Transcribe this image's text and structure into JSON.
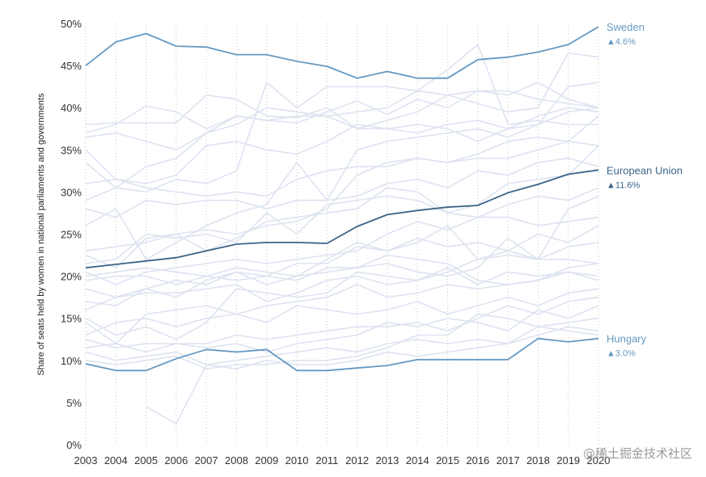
{
  "chart_data": {
    "type": "line",
    "title": "",
    "xlabel": "",
    "ylabel": "Share of seats held by women in national parliaments and governments",
    "x": [
      2003,
      2004,
      2005,
      2006,
      2007,
      2008,
      2009,
      2010,
      2011,
      2012,
      2013,
      2014,
      2015,
      2016,
      2017,
      2018,
      2019,
      2020
    ],
    "ylim": [
      0,
      50
    ],
    "y_ticks": [
      "0%",
      "5%",
      "10%",
      "15%",
      "20%",
      "25%",
      "30%",
      "35%",
      "40%",
      "45%",
      "50%"
    ],
    "grid": "dotted vertical lines at each year",
    "legend": "direct labels at the right end of highlighted series",
    "highlighted_series": [
      {
        "name": "Sweden",
        "change": "▲4.6%",
        "color": "#6699c2",
        "values": [
          45.0,
          47.8,
          48.8,
          47.3,
          47.2,
          46.3,
          46.3,
          45.5,
          44.9,
          43.5,
          44.3,
          43.5,
          43.5,
          45.7,
          46.0,
          46.6,
          47.5,
          49.6
        ]
      },
      {
        "name": "European Union",
        "change": "▲11.6%",
        "color": "#3c6488",
        "values": [
          21.0,
          21.4,
          21.8,
          22.2,
          23.0,
          23.8,
          24.0,
          24.0,
          23.9,
          25.9,
          27.3,
          27.8,
          28.2,
          28.4,
          29.9,
          30.9,
          32.1,
          32.6
        ]
      },
      {
        "name": "Hungary",
        "change": "▲3.0%",
        "color": "#6699c2",
        "values": [
          9.6,
          8.8,
          8.8,
          10.2,
          11.3,
          11.0,
          11.3,
          8.8,
          8.8,
          9.1,
          9.4,
          10.1,
          10.1,
          10.1,
          10.1,
          12.6,
          12.2,
          12.6
        ]
      }
    ],
    "background_series_color": "#dde3f0",
    "background_series": [
      {
        "values": [
          37.0,
          38.0,
          40.2,
          39.5,
          37.5,
          39.0,
          38.5,
          38.2,
          39.5,
          40.8,
          39.2,
          41.0,
          40.0,
          42.0,
          41.5,
          43.0,
          41.0,
          40.0
        ]
      },
      {
        "values": [
          36.5,
          37.0,
          36.0,
          35.0,
          37.0,
          38.0,
          40.0,
          39.5,
          39.0,
          37.5,
          38.5,
          39.5,
          41.5,
          40.5,
          39.5,
          40.0,
          46.5,
          46.0
        ]
      },
      {
        "values": [
          38.0,
          38.2,
          38.2,
          38.2,
          41.5,
          41.0,
          39.0,
          38.8,
          40.0,
          37.5,
          37.5,
          37.0,
          38.0,
          38.5,
          37.5,
          38.0,
          42.5,
          43.0
        ]
      },
      {
        "values": [
          35.0,
          31.5,
          31.0,
          32.0,
          35.5,
          36.0,
          35.0,
          34.5,
          36.0,
          38.0,
          37.5,
          38.0,
          37.5,
          36.0,
          37.5,
          39.0,
          40.0,
          39.5
        ]
      },
      {
        "values": [
          33.5,
          30.5,
          33.0,
          34.0,
          37.0,
          39.0,
          38.5,
          39.0,
          39.0,
          39.5,
          40.0,
          42.0,
          44.5,
          47.5,
          38.0,
          38.5,
          38.0,
          38.0
        ]
      },
      {
        "values": [
          29.0,
          30.5,
          30.0,
          31.5,
          31.0,
          32.5,
          43.0,
          40.0,
          42.5,
          42.5,
          42.5,
          42.0,
          41.5,
          42.0,
          42.0,
          41.0,
          40.5,
          40.0
        ]
      },
      {
        "values": [
          31.0,
          31.5,
          30.5,
          30.0,
          29.5,
          30.0,
          29.5,
          31.5,
          32.5,
          33.0,
          33.0,
          34.0,
          33.5,
          34.5,
          36.0,
          36.5,
          36.0,
          35.5
        ]
      },
      {
        "values": [
          28.0,
          27.0,
          29.0,
          28.5,
          29.0,
          29.0,
          28.0,
          29.0,
          29.0,
          35.0,
          36.0,
          36.5,
          37.0,
          37.5,
          36.5,
          38.0,
          39.5,
          40.0
        ]
      },
      {
        "values": [
          26.0,
          28.0,
          22.0,
          24.0,
          26.0,
          27.5,
          28.5,
          33.5,
          29.0,
          29.5,
          31.0,
          31.5,
          30.5,
          32.5,
          32.0,
          33.5,
          34.0,
          33.0
        ]
      },
      {
        "values": [
          23.0,
          23.5,
          24.0,
          25.0,
          25.5,
          25.0,
          26.0,
          26.5,
          28.0,
          32.0,
          33.5,
          34.0,
          33.5,
          34.0,
          34.0,
          35.0,
          36.0,
          39.0
        ]
      },
      {
        "values": [
          22.5,
          21.0,
          24.5,
          25.0,
          23.0,
          24.5,
          26.5,
          27.0,
          27.5,
          28.0,
          30.5,
          30.0,
          27.5,
          27.0,
          27.0,
          26.0,
          26.5,
          27.0
        ]
      },
      {
        "values": [
          21.5,
          22.0,
          25.0,
          24.5,
          25.0,
          24.0,
          27.5,
          25.0,
          28.5,
          29.0,
          29.5,
          29.0,
          27.5,
          28.5,
          31.0,
          31.5,
          32.0,
          35.5
        ]
      },
      {
        "values": [
          20.5,
          19.0,
          20.5,
          21.0,
          21.5,
          22.0,
          21.5,
          22.0,
          22.5,
          23.0,
          25.0,
          26.5,
          25.5,
          27.0,
          28.5,
          29.5,
          29.0,
          30.5
        ]
      },
      {
        "values": [
          20.0,
          20.5,
          21.0,
          20.5,
          20.0,
          21.0,
          20.5,
          20.0,
          22.0,
          24.0,
          23.0,
          24.0,
          26.0,
          22.0,
          23.0,
          25.0,
          24.0,
          26.0
        ]
      },
      {
        "values": [
          19.5,
          20.0,
          20.0,
          19.0,
          20.0,
          19.5,
          20.0,
          19.5,
          21.0,
          21.0,
          21.5,
          20.5,
          20.0,
          21.0,
          24.5,
          22.0,
          28.0,
          29.5
        ]
      },
      {
        "values": [
          18.5,
          17.5,
          18.5,
          19.5,
          19.0,
          20.5,
          20.0,
          21.5,
          21.5,
          23.5,
          23.0,
          24.5,
          23.5,
          24.0,
          23.0,
          22.0,
          22.0,
          21.5
        ]
      },
      {
        "values": [
          17.0,
          16.5,
          18.5,
          17.5,
          19.5,
          20.5,
          19.0,
          20.0,
          20.5,
          21.0,
          22.5,
          22.0,
          21.5,
          19.5,
          19.0,
          19.5,
          21.0,
          21.5
        ]
      },
      {
        "values": [
          16.0,
          17.5,
          18.0,
          18.0,
          18.5,
          19.0,
          17.0,
          18.0,
          19.5,
          20.0,
          19.0,
          19.5,
          21.0,
          19.0,
          20.5,
          20.0,
          20.5,
          20.0
        ]
      },
      {
        "values": [
          15.0,
          13.0,
          14.0,
          12.5,
          14.5,
          18.5,
          18.0,
          17.5,
          18.0,
          20.5,
          20.0,
          19.5,
          20.5,
          22.0,
          22.5,
          22.0,
          23.5,
          24.0
        ]
      },
      {
        "values": [
          14.5,
          12.0,
          15.5,
          16.0,
          16.5,
          15.5,
          16.5,
          17.0,
          17.5,
          19.0,
          17.5,
          18.0,
          19.0,
          18.5,
          19.0,
          19.5,
          20.5,
          19.5
        ]
      },
      {
        "values": [
          13.0,
          14.5,
          15.0,
          14.0,
          15.0,
          15.5,
          14.5,
          16.5,
          16.0,
          15.5,
          16.0,
          17.0,
          15.5,
          16.5,
          17.5,
          16.5,
          18.0,
          18.5
        ]
      },
      {
        "values": [
          12.5,
          11.5,
          12.0,
          12.0,
          12.0,
          13.0,
          12.5,
          13.0,
          13.5,
          14.0,
          14.0,
          14.5,
          13.5,
          15.0,
          16.5,
          15.5,
          17.0,
          17.5
        ]
      },
      {
        "values": [
          11.5,
          12.0,
          11.0,
          12.0,
          11.5,
          12.0,
          11.0,
          12.0,
          12.5,
          13.0,
          14.5,
          14.0,
          15.0,
          14.5,
          13.5,
          16.0,
          15.0,
          16.5
        ]
      },
      {
        "values": [
          11.0,
          10.0,
          10.5,
          11.0,
          9.5,
          10.0,
          10.5,
          11.0,
          11.5,
          11.0,
          12.0,
          12.5,
          12.0,
          12.5,
          12.0,
          14.0,
          14.5,
          15.0
        ]
      },
      {
        "values": [
          10.0,
          9.5,
          10.0,
          10.5,
          9.0,
          9.5,
          9.5,
          10.0,
          10.0,
          10.5,
          11.5,
          13.0,
          13.0,
          15.5,
          15.0,
          14.0,
          13.5,
          13.0
        ]
      },
      {
        "values": [
          null,
          null,
          4.5,
          2.5,
          9.5,
          9.0,
          10.0,
          9.5,
          9.5,
          10.0,
          11.0,
          10.5,
          11.0,
          11.5,
          12.0,
          13.0,
          14.0,
          13.5
        ]
      }
    ]
  },
  "watermark": "@稀土掘金技术社区"
}
